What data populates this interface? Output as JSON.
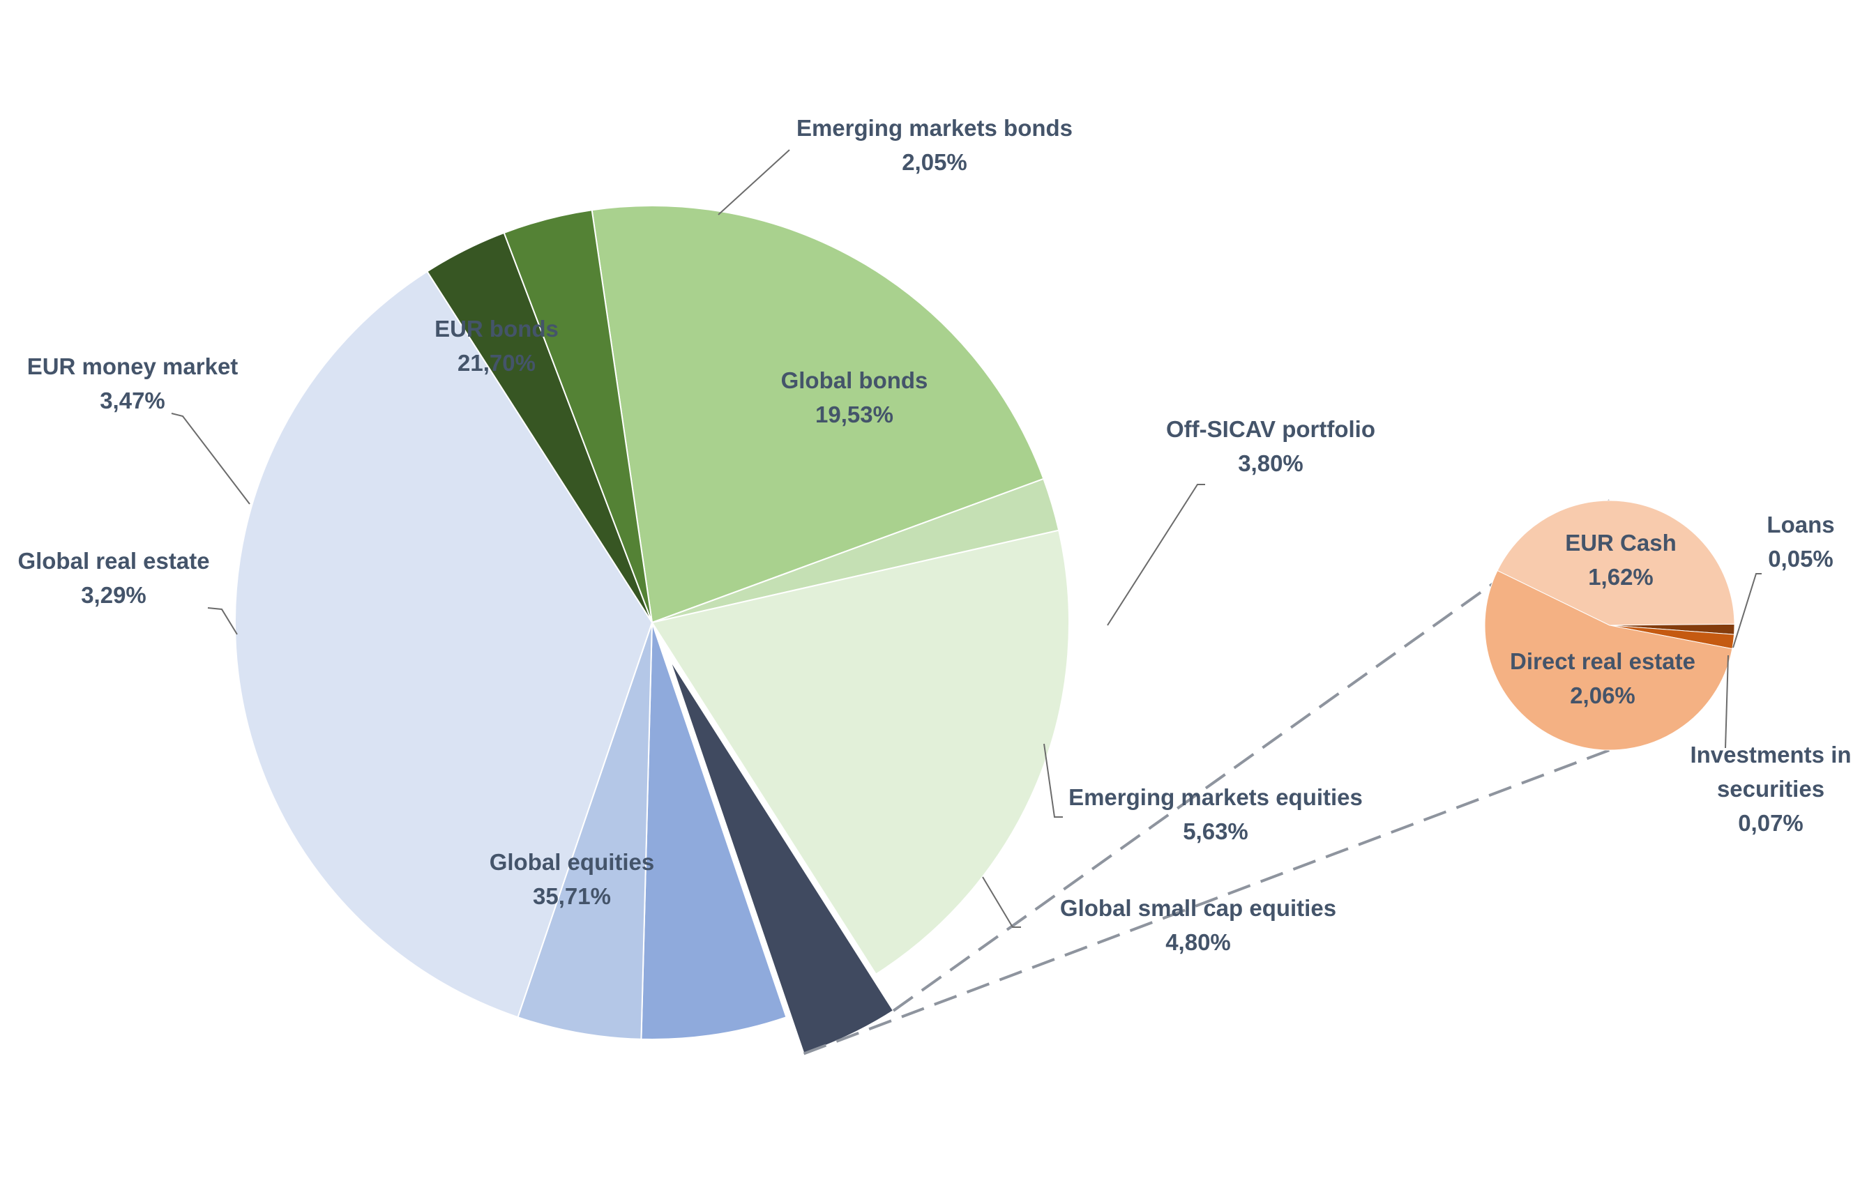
{
  "chart_data": {
    "type": "pie",
    "title": "",
    "main": {
      "slices": [
        {
          "label": "EUR bonds",
          "value_label": "21,70%",
          "value": 21.7,
          "color": "#A9D18E"
        },
        {
          "label": "Emerging markets bonds",
          "value_label": "2,05%",
          "value": 2.05,
          "color": "#C5E0B4"
        },
        {
          "label": "Global bonds",
          "value_label": "19,53%",
          "value": 19.53,
          "color": "#E2F0D9"
        },
        {
          "label": "Off-SICAV portfolio",
          "value_label": "3,80%",
          "value": 3.8,
          "color": "#404A60",
          "exploded": true
        },
        {
          "label": "Emerging markets equities",
          "value_label": "5,63%",
          "value": 5.63,
          "color": "#8FAADC"
        },
        {
          "label": "Global small cap equities",
          "value_label": "4,80%",
          "value": 4.8,
          "color": "#B4C7E7"
        },
        {
          "label": "Global equities",
          "value_label": "35,71%",
          "value": 35.71,
          "color": "#DAE3F3"
        },
        {
          "label": "Global real estate",
          "value_label": "3,29%",
          "value": 3.29,
          "color": "#375623"
        },
        {
          "label": "EUR money market",
          "value_label": "3,47%",
          "value": 3.47,
          "color": "#548235"
        }
      ]
    },
    "breakdown": {
      "parent": "Off-SICAV portfolio",
      "slices": [
        {
          "label": "EUR Cash",
          "value_label": "1,62%",
          "value": 1.62,
          "color": "#F8CBAD"
        },
        {
          "label": "Loans",
          "value_label": "0,05%",
          "value": 0.05,
          "color": "#843C0C"
        },
        {
          "label": "Investments in securities",
          "value_label": "0,07%",
          "value": 0.07,
          "color": "#C55A11"
        },
        {
          "label": "Direct real estate",
          "value_label": "2,06%",
          "value": 2.06,
          "color": "#F4B183"
        }
      ]
    },
    "legend": "none"
  }
}
